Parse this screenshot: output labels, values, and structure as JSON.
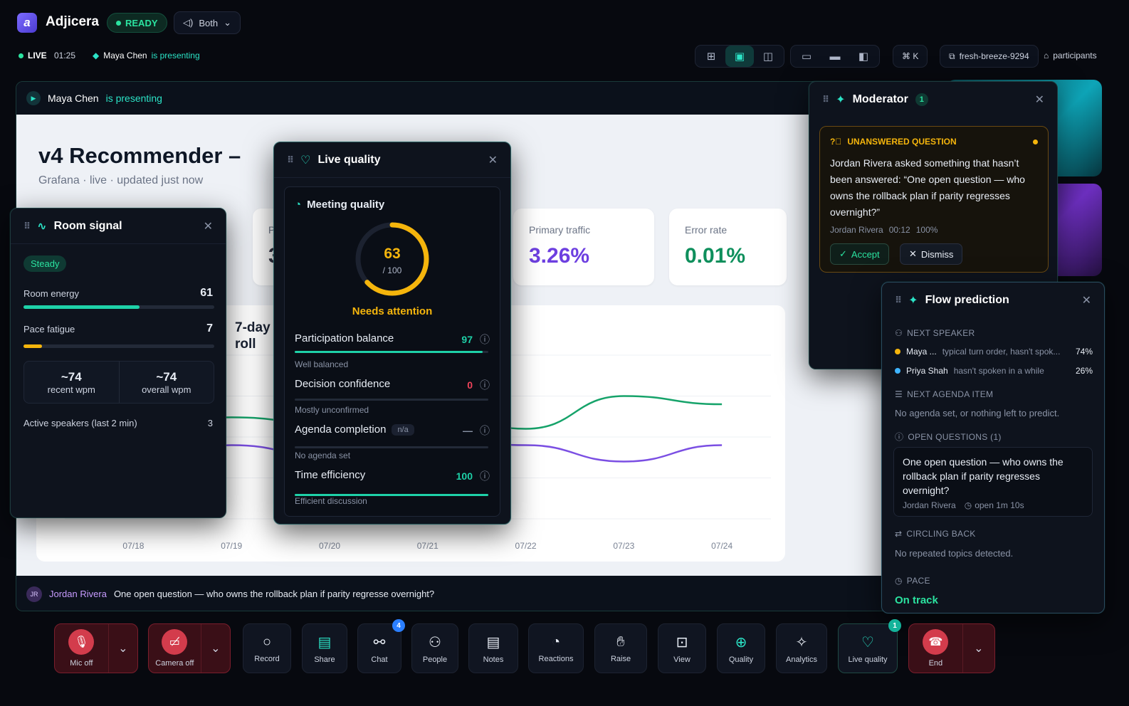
{
  "app": {
    "brand": "Adjicera",
    "status": "READY",
    "audio_mode": "Both"
  },
  "session": {
    "live": "LIVE",
    "elapsed": "01:25",
    "presenter": "Maya Chen",
    "presenting_suffix": "is presenting",
    "shortcut": "⌘ K",
    "room": "fresh-breeze-9294",
    "participants": "participants"
  },
  "slide": {
    "title": "v4 Recommender –",
    "meta": "Grafana · live · updated just now",
    "kpis": [
      {
        "label": "Primary traffic",
        "value": "3.26%",
        "color": "#6d3fe0"
      },
      {
        "label": "Error rate",
        "value": "0.01%",
        "color": "#0e8f5c"
      }
    ],
    "chart_title": "7-day roll",
    "partial_card_label": "P",
    "partial_card_value": "3"
  },
  "chart_data": {
    "type": "line",
    "categories": [
      "07/18",
      "07/19",
      "07/20",
      "07/21",
      "07/22",
      "07/23",
      "07/24"
    ],
    "series": [
      {
        "color": "#16a36a",
        "values": [
          0.55,
          0.62,
          0.58,
          0.66,
          0.55,
          0.75,
          0.7
        ]
      },
      {
        "color": "#7b4fe3",
        "values": [
          0.32,
          0.45,
          0.38,
          0.5,
          0.45,
          0.35,
          0.45
        ]
      }
    ],
    "ylim": [
      0,
      1
    ],
    "grid": true
  },
  "caption": {
    "initials": "JR",
    "speaker": "Jordan Rivera",
    "text": "One open question — who owns the rollback plan if parity regresse overnight?"
  },
  "room_signal": {
    "title": "Room signal",
    "state": "Steady",
    "energy_label": "Room energy",
    "energy": 61,
    "fatigue_label": "Pace fatigue",
    "fatigue": 7,
    "recent_wpm": "~74",
    "recent_label": "recent wpm",
    "overall_wpm": "~74",
    "overall_label": "overall wpm",
    "speakers_label": "Active speakers (last 2 min)",
    "speakers": "3"
  },
  "live_quality": {
    "title": "Live quality",
    "subtitle": "Meeting quality",
    "score": "63",
    "score_max": "/ 100",
    "score_value": 63,
    "verdict": "Needs attention",
    "metrics": [
      {
        "label": "Participation balance",
        "value": "97",
        "fill": 97,
        "note": "Well balanced",
        "color": "#1ed1a8",
        "vcolor": "#1ed1a8"
      },
      {
        "label": "Decision confidence",
        "value": "0",
        "fill": 0,
        "note": "Mostly unconfirmed",
        "color": "#f0435a",
        "vcolor": "#f0435a"
      },
      {
        "label": "Agenda completion",
        "value": "—",
        "tag": "n/a",
        "fill": 0,
        "note": "No agenda set",
        "color": "#8a93a6",
        "vcolor": "#8a93a6"
      },
      {
        "label": "Time efficiency",
        "value": "100",
        "fill": 100,
        "note": "Efficient discussion",
        "color": "#1ed1a8",
        "vcolor": "#1ed1a8"
      }
    ]
  },
  "moderator": {
    "title": "Moderator",
    "count": "1",
    "alert_title": "UNANSWERED QUESTION",
    "alert_text": "Jordan Rivera asked something that hasn’t been answered: “One open question — who owns the rollback plan if parity regresses overnight?”",
    "who": "Jordan Rivera",
    "when": "00:12",
    "conf": "100%",
    "accept": "Accept",
    "dismiss": "Dismiss"
  },
  "flow": {
    "title": "Flow prediction",
    "next_speaker": "NEXT SPEAKER",
    "speakers": [
      {
        "name": "Maya ...",
        "reason": "typical turn order, hasn't spok...",
        "pct": "74%",
        "color": "#f5b50c"
      },
      {
        "name": "Priya Shah",
        "reason": "hasn't spoken in a while",
        "pct": "26%",
        "color": "#3fb4ff"
      }
    ],
    "agenda_h": "NEXT AGENDA ITEM",
    "agenda": "No agenda set, or nothing left to predict.",
    "questions_h": "OPEN QUESTIONS (1)",
    "question": "One open question — who owns the rollback plan if parity regresses overnight?",
    "q_who": "Jordan Rivera",
    "q_open": "open 1m 10s",
    "circling_h": "CIRCLING BACK",
    "circling": "No repeated topics detected.",
    "pace_h": "PACE",
    "pace": "On track"
  },
  "dock": {
    "mic": "Mic off",
    "camera": "Camera off",
    "record": "Record",
    "share": "Share",
    "chat": "Chat",
    "chat_badge": "4",
    "people": "People",
    "notes": "Notes",
    "reactions": "Reactions",
    "raise": "Raise",
    "view": "View",
    "quality": "Quality",
    "analytics": "Analytics",
    "live_quality": "Live quality",
    "live_badge": "1",
    "end": "End"
  }
}
